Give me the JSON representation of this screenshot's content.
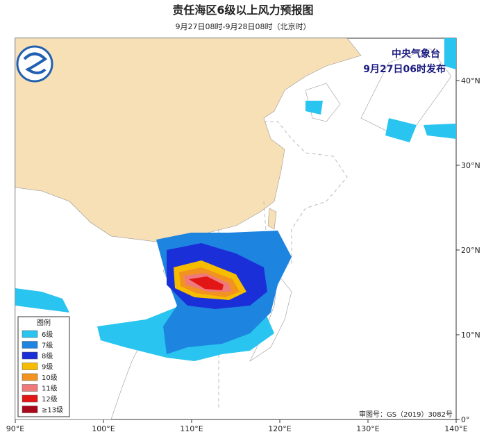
{
  "title": "责任海区6级以上风力预报图",
  "subtitle": "9月27日08时-9月28日08时（北京时）",
  "issuer": "中央气象台",
  "issue_time": "9月27日06时发布",
  "legend": {
    "title": "图例",
    "items": [
      {
        "label": "6级",
        "color": "#29c4f0"
      },
      {
        "label": "7级",
        "color": "#1d84e0"
      },
      {
        "label": "8级",
        "color": "#1b2fd8"
      },
      {
        "label": "9级",
        "color": "#f6bc00"
      },
      {
        "label": "10级",
        "color": "#f29220"
      },
      {
        "label": "11级",
        "color": "#f07a7a"
      },
      {
        "label": "12级",
        "color": "#e31616"
      },
      {
        "label": "≥13级",
        "color": "#a8081a"
      }
    ]
  },
  "lon_ticks": [
    {
      "value": 90,
      "label": "90°E"
    },
    {
      "value": 100,
      "label": "100°E"
    },
    {
      "value": 110,
      "label": "110°E"
    },
    {
      "value": 120,
      "label": "120°E"
    },
    {
      "value": 130,
      "label": "130°E"
    },
    {
      "value": 140,
      "label": "140°E"
    }
  ],
  "lat_ticks": [
    {
      "value": 0,
      "label": "0°"
    },
    {
      "value": 10,
      "label": "10°N"
    },
    {
      "value": 20,
      "label": "20°N"
    },
    {
      "value": 30,
      "label": "30°N"
    },
    {
      "value": 40,
      "label": "40°N"
    }
  ],
  "approval": "审图号：GS（2019）3082号"
}
